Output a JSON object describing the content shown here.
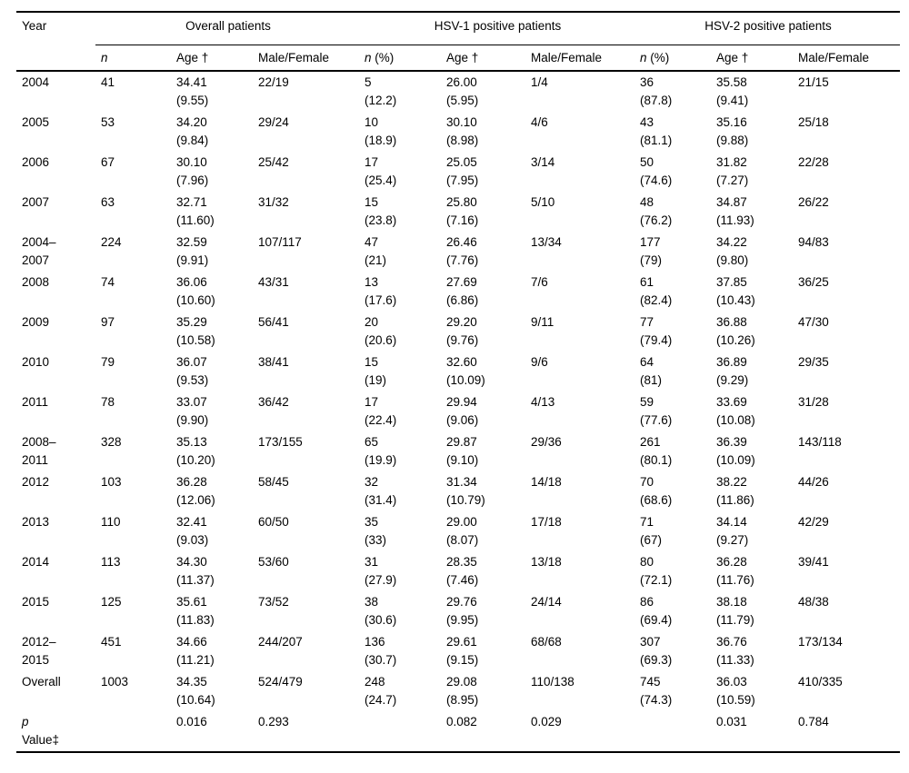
{
  "table": {
    "year_header": "Year",
    "groups": [
      {
        "label": "Overall patients"
      },
      {
        "label": "HSV-1 positive patients"
      },
      {
        "label": "HSV-2 positive patients"
      }
    ],
    "subheaders": [
      {
        "italic": "n",
        "text": ""
      },
      {
        "italic": "",
        "text": "Age †"
      },
      {
        "italic": "",
        "text": "Male/Female"
      },
      {
        "italic": "n",
        "text": " (%)"
      },
      {
        "italic": "",
        "text": "Age †"
      },
      {
        "italic": "",
        "text": "Male/Female"
      },
      {
        "italic": "n",
        "text": " (%)"
      },
      {
        "italic": "",
        "text": "Age †"
      },
      {
        "italic": "",
        "text": "Male/Female"
      }
    ],
    "rows": [
      {
        "year": [
          "2004",
          ""
        ],
        "cells": [
          [
            "41",
            ""
          ],
          [
            "34.41",
            "(9.55)"
          ],
          [
            "22/19",
            ""
          ],
          [
            "5",
            "(12.2)"
          ],
          [
            "26.00",
            "(5.95)"
          ],
          [
            "1/4",
            ""
          ],
          [
            "36",
            "(87.8)"
          ],
          [
            "35.58",
            "(9.41)"
          ],
          [
            "21/15",
            ""
          ]
        ]
      },
      {
        "year": [
          "2005",
          ""
        ],
        "cells": [
          [
            "53",
            ""
          ],
          [
            "34.20",
            "(9.84)"
          ],
          [
            "29/24",
            ""
          ],
          [
            "10",
            "(18.9)"
          ],
          [
            "30.10",
            "(8.98)"
          ],
          [
            "4/6",
            ""
          ],
          [
            "43",
            "(81.1)"
          ],
          [
            "35.16",
            "(9.88)"
          ],
          [
            "25/18",
            ""
          ]
        ]
      },
      {
        "year": [
          "2006",
          ""
        ],
        "cells": [
          [
            "67",
            ""
          ],
          [
            "30.10",
            "(7.96)"
          ],
          [
            "25/42",
            ""
          ],
          [
            "17",
            "(25.4)"
          ],
          [
            "25.05",
            "(7.95)"
          ],
          [
            "3/14",
            ""
          ],
          [
            "50",
            "(74.6)"
          ],
          [
            "31.82",
            "(7.27)"
          ],
          [
            "22/28",
            ""
          ]
        ]
      },
      {
        "year": [
          "2007",
          ""
        ],
        "cells": [
          [
            "63",
            ""
          ],
          [
            "32.71",
            "(11.60)"
          ],
          [
            "31/32",
            ""
          ],
          [
            "15",
            "(23.8)"
          ],
          [
            "25.80",
            "(7.16)"
          ],
          [
            "5/10",
            ""
          ],
          [
            "48",
            "(76.2)"
          ],
          [
            "34.87",
            "(11.93)"
          ],
          [
            "26/22",
            ""
          ]
        ]
      },
      {
        "year": [
          "2004–",
          "2007"
        ],
        "cells": [
          [
            "224",
            ""
          ],
          [
            "32.59",
            "(9.91)"
          ],
          [
            "107/117",
            ""
          ],
          [
            "47",
            "(21)"
          ],
          [
            "26.46",
            "(7.76)"
          ],
          [
            "13/34",
            ""
          ],
          [
            "177",
            "(79)"
          ],
          [
            "34.22",
            "(9.80)"
          ],
          [
            "94/83",
            ""
          ]
        ]
      },
      {
        "year": [
          "2008",
          ""
        ],
        "cells": [
          [
            "74",
            ""
          ],
          [
            "36.06",
            "(10.60)"
          ],
          [
            "43/31",
            ""
          ],
          [
            "13",
            "(17.6)"
          ],
          [
            "27.69",
            "(6.86)"
          ],
          [
            "7/6",
            ""
          ],
          [
            "61",
            "(82.4)"
          ],
          [
            "37.85",
            "(10.43)"
          ],
          [
            "36/25",
            ""
          ]
        ]
      },
      {
        "year": [
          "2009",
          ""
        ],
        "cells": [
          [
            "97",
            ""
          ],
          [
            "35.29",
            "(10.58)"
          ],
          [
            "56/41",
            ""
          ],
          [
            "20",
            "(20.6)"
          ],
          [
            "29.20",
            "(9.76)"
          ],
          [
            "9/11",
            ""
          ],
          [
            "77",
            "(79.4)"
          ],
          [
            "36.88",
            "(10.26)"
          ],
          [
            "47/30",
            ""
          ]
        ]
      },
      {
        "year": [
          "2010",
          ""
        ],
        "cells": [
          [
            "79",
            ""
          ],
          [
            "36.07",
            "(9.53)"
          ],
          [
            "38/41",
            ""
          ],
          [
            "15",
            "(19)"
          ],
          [
            "32.60",
            "(10.09)"
          ],
          [
            "9/6",
            ""
          ],
          [
            "64",
            "(81)"
          ],
          [
            "36.89",
            "(9.29)"
          ],
          [
            "29/35",
            ""
          ]
        ]
      },
      {
        "year": [
          "2011",
          ""
        ],
        "cells": [
          [
            "78",
            ""
          ],
          [
            "33.07",
            "(9.90)"
          ],
          [
            "36/42",
            ""
          ],
          [
            "17",
            "(22.4)"
          ],
          [
            "29.94",
            "(9.06)"
          ],
          [
            "4/13",
            ""
          ],
          [
            "59",
            "(77.6)"
          ],
          [
            "33.69",
            "(10.08)"
          ],
          [
            "31/28",
            ""
          ]
        ]
      },
      {
        "year": [
          "2008–",
          "2011"
        ],
        "cells": [
          [
            "328",
            ""
          ],
          [
            "35.13",
            "(10.20)"
          ],
          [
            "173/155",
            ""
          ],
          [
            "65",
            "(19.9)"
          ],
          [
            "29.87",
            "(9.10)"
          ],
          [
            "29/36",
            ""
          ],
          [
            "261",
            "(80.1)"
          ],
          [
            "36.39",
            "(10.09)"
          ],
          [
            "143/118",
            ""
          ]
        ]
      },
      {
        "year": [
          "2012",
          ""
        ],
        "cells": [
          [
            "103",
            ""
          ],
          [
            "36.28",
            "(12.06)"
          ],
          [
            "58/45",
            ""
          ],
          [
            "32",
            "(31.4)"
          ],
          [
            "31.34",
            "(10.79)"
          ],
          [
            "14/18",
            ""
          ],
          [
            "70",
            "(68.6)"
          ],
          [
            "38.22",
            "(11.86)"
          ],
          [
            "44/26",
            ""
          ]
        ]
      },
      {
        "year": [
          "2013",
          ""
        ],
        "cells": [
          [
            "110",
            ""
          ],
          [
            "32.41",
            "(9.03)"
          ],
          [
            "60/50",
            ""
          ],
          [
            "35",
            "(33)"
          ],
          [
            "29.00",
            "(8.07)"
          ],
          [
            "17/18",
            ""
          ],
          [
            "71",
            "(67)"
          ],
          [
            "34.14",
            "(9.27)"
          ],
          [
            "42/29",
            ""
          ]
        ]
      },
      {
        "year": [
          "2014",
          ""
        ],
        "cells": [
          [
            "113",
            ""
          ],
          [
            "34.30",
            "(11.37)"
          ],
          [
            "53/60",
            ""
          ],
          [
            "31",
            "(27.9)"
          ],
          [
            "28.35",
            "(7.46)"
          ],
          [
            "13/18",
            ""
          ],
          [
            "80",
            "(72.1)"
          ],
          [
            "36.28",
            "(11.76)"
          ],
          [
            "39/41",
            ""
          ]
        ]
      },
      {
        "year": [
          "2015",
          ""
        ],
        "cells": [
          [
            "125",
            ""
          ],
          [
            "35.61",
            "(11.83)"
          ],
          [
            "73/52",
            ""
          ],
          [
            "38",
            "(30.6)"
          ],
          [
            "29.76",
            "(9.95)"
          ],
          [
            "24/14",
            ""
          ],
          [
            "86",
            "(69.4)"
          ],
          [
            "38.18",
            "(11.79)"
          ],
          [
            "48/38",
            ""
          ]
        ]
      },
      {
        "year": [
          "2012–",
          "2015"
        ],
        "cells": [
          [
            "451",
            ""
          ],
          [
            "34.66",
            "(11.21)"
          ],
          [
            "244/207",
            ""
          ],
          [
            "136",
            "(30.7)"
          ],
          [
            "29.61",
            "(9.15)"
          ],
          [
            "68/68",
            ""
          ],
          [
            "307",
            "(69.3)"
          ],
          [
            "36.76",
            "(11.33)"
          ],
          [
            "173/134",
            ""
          ]
        ]
      },
      {
        "year": [
          "Overall",
          ""
        ],
        "cells": [
          [
            "1003",
            ""
          ],
          [
            "34.35",
            "(10.64)"
          ],
          [
            "524/479",
            ""
          ],
          [
            "248",
            "(24.7)"
          ],
          [
            "29.08",
            "(8.95)"
          ],
          [
            "110/138",
            ""
          ],
          [
            "745",
            "(74.3)"
          ],
          [
            "36.03",
            "(10.59)"
          ],
          [
            "410/335",
            ""
          ]
        ]
      },
      {
        "year": [
          "p",
          "Value‡"
        ],
        "year_italic_first": true,
        "cells": [
          [
            "",
            ""
          ],
          [
            "0.016",
            ""
          ],
          [
            "0.293",
            ""
          ],
          [
            "",
            ""
          ],
          [
            "0.082",
            ""
          ],
          [
            "0.029",
            ""
          ],
          [
            "",
            ""
          ],
          [
            "0.031",
            ""
          ],
          [
            "0.784",
            ""
          ]
        ]
      }
    ]
  }
}
